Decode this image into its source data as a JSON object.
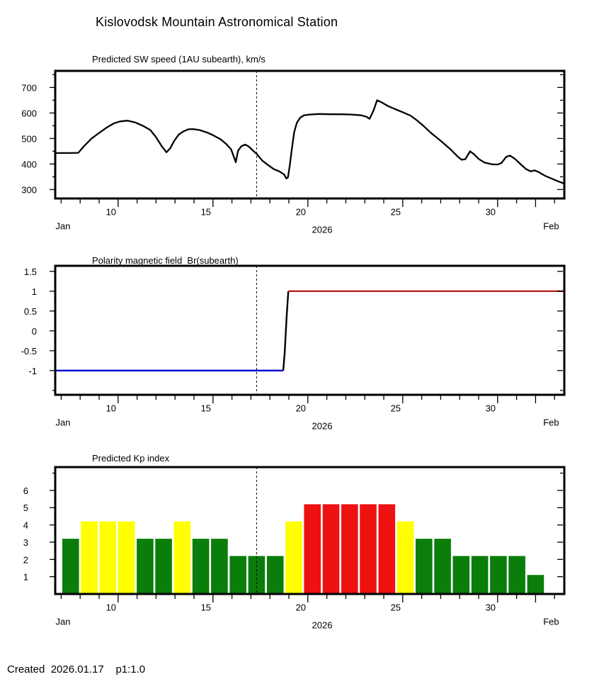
{
  "page": {
    "title": "Kislovodsk Mountain Astronomical Station",
    "footer": "Created  2026.01.17    p1:1.0",
    "background": "#ffffff",
    "text_color": "#000000"
  },
  "time_axis": {
    "start_label": "Jan",
    "year_label": "2026",
    "end_label": "Feb",
    "start_day": 6.7,
    "end_day": 33.5,
    "day_ticks_labeled": [
      10,
      15,
      20,
      25,
      30
    ],
    "feb_day": 32,
    "minor_tick_start": 7,
    "minor_tick_end": 33,
    "marker_day": 17.3,
    "marker_color": "#000000"
  },
  "chart_data": [
    {
      "id": "sw-speed",
      "type": "line",
      "title": "Predicted SW speed (1AU subearth), km/s",
      "ylabel_ticks": [
        300,
        400,
        500,
        600,
        700
      ],
      "ytick_all": [
        300,
        350,
        400,
        450,
        500,
        550,
        600,
        650,
        700,
        750
      ],
      "ylim": [
        265,
        765
      ],
      "line_color": "#000000",
      "points": [
        [
          6.69,
          443
        ],
        [
          7.4,
          443
        ],
        [
          7.9,
          444
        ],
        [
          8.2,
          470
        ],
        [
          8.6,
          500
        ],
        [
          9.0,
          522
        ],
        [
          9.4,
          543
        ],
        [
          9.8,
          560
        ],
        [
          10.1,
          567
        ],
        [
          10.5,
          570
        ],
        [
          10.9,
          563
        ],
        [
          11.3,
          550
        ],
        [
          11.7,
          533
        ],
        [
          12.0,
          505
        ],
        [
          12.3,
          470
        ],
        [
          12.55,
          446
        ],
        [
          12.75,
          462
        ],
        [
          12.95,
          490
        ],
        [
          13.2,
          516
        ],
        [
          13.45,
          528
        ],
        [
          13.7,
          536
        ],
        [
          13.95,
          537
        ],
        [
          14.3,
          533
        ],
        [
          14.7,
          523
        ],
        [
          15.0,
          513
        ],
        [
          15.4,
          497
        ],
        [
          15.7,
          478
        ],
        [
          15.95,
          458
        ],
        [
          16.1,
          428
        ],
        [
          16.2,
          407
        ],
        [
          16.32,
          452
        ],
        [
          16.5,
          470
        ],
        [
          16.7,
          476
        ],
        [
          16.9,
          468
        ],
        [
          17.1,
          453
        ],
        [
          17.3,
          440
        ],
        [
          17.6,
          413
        ],
        [
          17.9,
          396
        ],
        [
          18.2,
          380
        ],
        [
          18.5,
          371
        ],
        [
          18.75,
          359
        ],
        [
          18.87,
          343
        ],
        [
          18.95,
          348
        ],
        [
          19.05,
          395
        ],
        [
          19.15,
          455
        ],
        [
          19.28,
          525
        ],
        [
          19.42,
          562
        ],
        [
          19.6,
          582
        ],
        [
          19.8,
          591
        ],
        [
          20.1,
          594
        ],
        [
          20.6,
          596
        ],
        [
          21.2,
          595
        ],
        [
          21.8,
          595
        ],
        [
          22.3,
          594
        ],
        [
          22.8,
          591
        ],
        [
          23.1,
          585
        ],
        [
          23.25,
          577
        ],
        [
          23.45,
          608
        ],
        [
          23.65,
          650
        ],
        [
          23.85,
          643
        ],
        [
          24.2,
          628
        ],
        [
          24.6,
          615
        ],
        [
          25.0,
          603
        ],
        [
          25.4,
          590
        ],
        [
          25.7,
          574
        ],
        [
          26.1,
          549
        ],
        [
          26.5,
          521
        ],
        [
          27.0,
          491
        ],
        [
          27.5,
          459
        ],
        [
          27.9,
          429
        ],
        [
          28.1,
          417
        ],
        [
          28.3,
          419
        ],
        [
          28.55,
          450
        ],
        [
          28.75,
          439
        ],
        [
          29.0,
          420
        ],
        [
          29.3,
          406
        ],
        [
          29.7,
          399
        ],
        [
          30.0,
          398
        ],
        [
          30.2,
          404
        ],
        [
          30.45,
          428
        ],
        [
          30.65,
          433
        ],
        [
          30.9,
          421
        ],
        [
          31.2,
          400
        ],
        [
          31.5,
          380
        ],
        [
          31.75,
          371
        ],
        [
          31.95,
          375
        ],
        [
          32.15,
          369
        ],
        [
          32.5,
          354
        ],
        [
          32.9,
          341
        ],
        [
          33.2,
          332
        ],
        [
          33.52,
          323
        ]
      ]
    },
    {
      "id": "polarity",
      "type": "step-line",
      "title": "Polarity magnetic field  Br(subearth)",
      "ylabel_ticks": [
        -1,
        -0.5,
        0,
        0.5,
        1,
        1.5
      ],
      "ytick_all": [
        -1.5,
        -1,
        -0.5,
        0,
        0.5,
        1,
        1.5
      ],
      "ylim": [
        -1.61,
        1.64
      ],
      "segments": [
        {
          "name": "negative-polarity",
          "value": -1,
          "color": "#0000cc",
          "points": [
            [
              6.69,
              -1
            ],
            [
              18.7,
              -1
            ]
          ]
        },
        {
          "name": "polarity-transition",
          "color": "#000000",
          "points": [
            [
              18.7,
              -1
            ],
            [
              18.78,
              -0.55
            ],
            [
              18.88,
              0.35
            ],
            [
              18.97,
              1
            ]
          ]
        },
        {
          "name": "positive-polarity",
          "value": 1,
          "color": "#b22222",
          "points": [
            [
              18.97,
              1
            ],
            [
              33.52,
              1
            ]
          ]
        }
      ]
    },
    {
      "id": "kp-index",
      "type": "bar",
      "title": "Predicted Kp index",
      "ylabel_ticks": [
        1,
        2,
        3,
        4,
        5,
        6
      ],
      "ytick_all": [
        1,
        2,
        3,
        4,
        5,
        6,
        7
      ],
      "ylim": [
        0,
        7.35
      ],
      "level_colors": {
        "green": "#0a7d0a",
        "yellow": "#ffff00",
        "red": "#ee1111"
      },
      "bars": [
        {
          "date": "Jan 7",
          "kp": 3.2,
          "level": "green"
        },
        {
          "date": "Jan 8",
          "kp": 4.2,
          "level": "yellow"
        },
        {
          "date": "Jan 9",
          "kp": 4.2,
          "level": "yellow"
        },
        {
          "date": "Jan 10",
          "kp": 4.2,
          "level": "yellow"
        },
        {
          "date": "Jan 11",
          "kp": 3.2,
          "level": "green"
        },
        {
          "date": "Jan 12",
          "kp": 3.2,
          "level": "green"
        },
        {
          "date": "Jan 13",
          "kp": 4.2,
          "level": "yellow"
        },
        {
          "date": "Jan 14",
          "kp": 3.2,
          "level": "green"
        },
        {
          "date": "Jan 15",
          "kp": 3.2,
          "level": "green"
        },
        {
          "date": "Jan 16",
          "kp": 2.2,
          "level": "green"
        },
        {
          "date": "Jan 17",
          "kp": 2.2,
          "level": "green"
        },
        {
          "date": "Jan 18",
          "kp": 2.2,
          "level": "green"
        },
        {
          "date": "Jan 19",
          "kp": 4.2,
          "level": "yellow"
        },
        {
          "date": "Jan 20",
          "kp": 5.2,
          "level": "red"
        },
        {
          "date": "Jan 21",
          "kp": 5.2,
          "level": "red"
        },
        {
          "date": "Jan 22",
          "kp": 5.2,
          "level": "red"
        },
        {
          "date": "Jan 23",
          "kp": 5.2,
          "level": "red"
        },
        {
          "date": "Jan 24",
          "kp": 5.2,
          "level": "red"
        },
        {
          "date": "Jan 25",
          "kp": 4.2,
          "level": "yellow"
        },
        {
          "date": "Jan 26",
          "kp": 3.2,
          "level": "green"
        },
        {
          "date": "Jan 27",
          "kp": 3.2,
          "level": "green"
        },
        {
          "date": "Jan 28",
          "kp": 2.2,
          "level": "green"
        },
        {
          "date": "Jan 29",
          "kp": 2.2,
          "level": "green"
        },
        {
          "date": "Jan 30",
          "kp": 2.2,
          "level": "green"
        },
        {
          "date": "Jan 31",
          "kp": 2.2,
          "level": "green"
        },
        {
          "date": "Feb 1",
          "kp": 1.1,
          "level": "green"
        }
      ]
    }
  ]
}
